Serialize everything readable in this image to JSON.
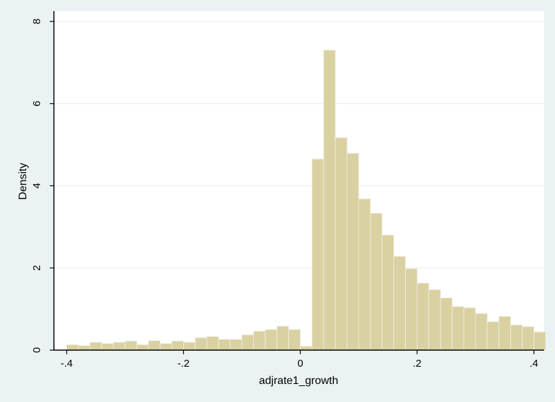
{
  "chart_data": {
    "type": "bar",
    "title": "",
    "xlabel": "adjrate1_growth",
    "ylabel": "Density",
    "xlim": [
      -0.41,
      0.41
    ],
    "ylim": [
      0,
      8.2
    ],
    "xticks": [
      {
        "value": -0.4,
        "label": "-.4"
      },
      {
        "value": -0.2,
        "label": "-.2"
      },
      {
        "value": 0,
        "label": "0"
      },
      {
        "value": 0.2,
        "label": ".2"
      },
      {
        "value": 0.4,
        "label": ".4"
      }
    ],
    "yticks": [
      {
        "value": 0,
        "label": "0"
      },
      {
        "value": 2,
        "label": "2"
      },
      {
        "value": 4,
        "label": "4"
      },
      {
        "value": 6,
        "label": "6"
      },
      {
        "value": 8,
        "label": "8"
      }
    ],
    "grid": true,
    "bin_width": 0.02,
    "bin_start": -0.4,
    "values": [
      0.13,
      0.11,
      0.19,
      0.16,
      0.19,
      0.22,
      0.13,
      0.23,
      0.16,
      0.22,
      0.19,
      0.3,
      0.33,
      0.26,
      0.26,
      0.37,
      0.46,
      0.5,
      0.58,
      0.5,
      0.09,
      4.65,
      7.3,
      5.17,
      4.79,
      3.68,
      3.33,
      2.8,
      2.28,
      1.98,
      1.63,
      1.47,
      1.27,
      1.06,
      1.03,
      0.89,
      0.69,
      0.82,
      0.61,
      0.57,
      0.44
    ],
    "colors": {
      "bar_fill": "#d9d1a1",
      "bar_stroke": "#eeeadb",
      "plot_bg": "#ffffff",
      "outer_bg": "#eaf2f3",
      "grid": "#e6ecee",
      "axis": "#000000"
    }
  }
}
